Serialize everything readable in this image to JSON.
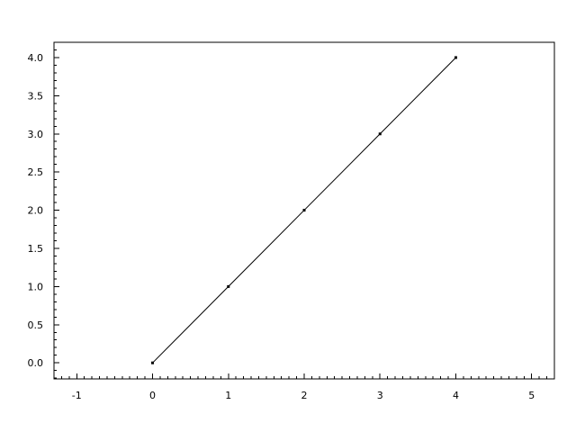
{
  "chart_data": {
    "type": "line",
    "title": "",
    "xlabel": "",
    "ylabel": "",
    "x": [
      0,
      1,
      2,
      3,
      4
    ],
    "series": [
      {
        "values": [
          0,
          1,
          2,
          3,
          4
        ],
        "color": "#000000",
        "marker": "dot"
      }
    ],
    "xlim": [
      -1.3,
      5.3
    ],
    "ylim": [
      -0.21,
      4.2
    ],
    "xticks": [
      "-1",
      "0",
      "1",
      "2",
      "3",
      "4",
      "5"
    ],
    "yticks": [
      "0.0",
      "0.5",
      "1.0",
      "1.5",
      "2.0",
      "2.5",
      "3.0",
      "3.5",
      "4.0"
    ],
    "minor_tick_step": 0.1,
    "grid": false
  }
}
